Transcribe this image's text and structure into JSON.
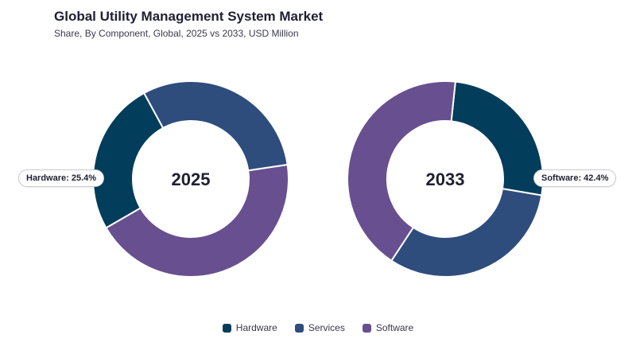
{
  "header": {
    "title": "Global Utility Management System Market",
    "subtitle": "Share, By Component, Global, 2025 vs 2033, USD Million"
  },
  "chart_data": {
    "type": "pie",
    "donut": true,
    "categories": [
      "Hardware",
      "Services",
      "Software"
    ],
    "colors": [
      "#023d5c",
      "#2e4d7d",
      "#674f90"
    ],
    "charts": [
      {
        "center_label": "2025",
        "values": [
          25.4,
          30.6,
          44.0
        ],
        "callout": {
          "category": "Hardware",
          "text": "Hardware: 25.4%"
        }
      },
      {
        "center_label": "2033",
        "values": [
          26.0,
          31.6,
          42.4
        ],
        "callout": {
          "category": "Software",
          "text": "Software: 42.4%"
        }
      }
    ],
    "legend": {
      "position": "bottom"
    }
  }
}
